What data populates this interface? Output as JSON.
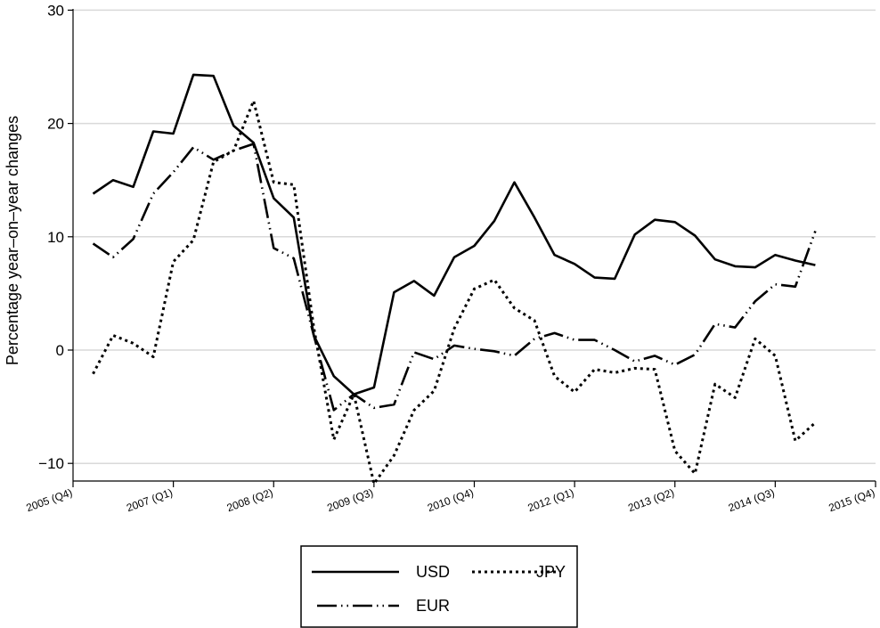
{
  "chart_data": {
    "type": "line",
    "title": "",
    "xlabel": "",
    "ylabel": "Percentage year–on–year changes",
    "ylim": [
      -11.5,
      30
    ],
    "yticks": [
      -10,
      0,
      10,
      20,
      30
    ],
    "grid": true,
    "x_tick_labels": [
      "2005 (Q4)",
      "2007 (Q1)",
      "2008 (Q2)",
      "2009 (Q3)",
      "2010 (Q4)",
      "2012 (Q1)",
      "2013 (Q2)",
      "2014 (Q3)",
      "2015 (Q4)"
    ],
    "x_start": "2006 (Q1)",
    "x_end": "2015 (Q1)",
    "x_frequency": "quarterly",
    "legend_position": "bottom",
    "series": [
      {
        "name": "USD",
        "style": "solid",
        "values": [
          13.8,
          15.0,
          14.4,
          19.3,
          19.1,
          24.3,
          24.2,
          19.8,
          18.3,
          13.4,
          11.7,
          1.3,
          -2.3,
          -3.9,
          -3.3,
          5.1,
          6.1,
          4.8,
          8.2,
          9.2,
          11.4,
          14.8,
          11.7,
          8.4,
          7.6,
          6.4,
          6.3,
          10.2,
          11.5,
          11.3,
          10.1,
          8.0,
          7.4,
          7.3,
          8.4,
          7.9,
          7.5
        ]
      },
      {
        "name": "EUR",
        "style": "dash-dot-dot",
        "values": [
          9.4,
          8.2,
          9.8,
          13.8,
          15.7,
          17.9,
          16.8,
          17.6,
          18.2,
          9.0,
          8.1,
          1.3,
          -5.3,
          -3.9,
          -5.1,
          -4.8,
          -0.2,
          -0.8,
          0.4,
          0.1,
          -0.1,
          -0.5,
          1.0,
          1.5,
          0.9,
          0.9,
          0.0,
          -1.0,
          -0.5,
          -1.3,
          -0.4,
          2.3,
          2.0,
          4.3,
          5.8,
          5.6,
          10.5
        ]
      },
      {
        "name": "JPY",
        "style": "dotted",
        "values": [
          -2.1,
          1.3,
          0.6,
          -0.6,
          7.8,
          9.7,
          16.6,
          17.6,
          22.0,
          14.8,
          14.6,
          2.0,
          -7.9,
          -3.9,
          -11.8,
          -9.3,
          -5.3,
          -3.6,
          1.9,
          5.4,
          6.2,
          3.7,
          2.6,
          -2.3,
          -3.7,
          -1.7,
          -2.0,
          -1.6,
          -1.7,
          -8.9,
          -10.9,
          -3.0,
          -4.2,
          1.0,
          -0.5,
          -8.0,
          -6.4
        ]
      }
    ]
  }
}
